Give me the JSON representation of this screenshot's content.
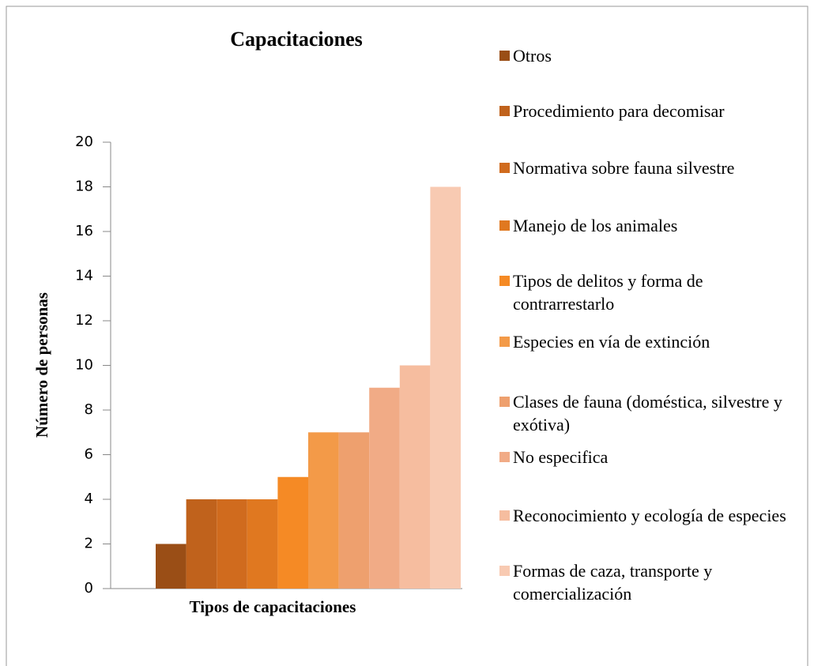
{
  "chart_data": {
    "type": "bar",
    "title": "Capacitaciones",
    "x_label": "Tipos de capacitaciones",
    "y_label": "Número de personas",
    "ylim": [
      0,
      20
    ],
    "yticks": [
      0,
      2,
      4,
      6,
      8,
      10,
      12,
      14,
      16,
      18,
      20
    ],
    "legend": "right",
    "series": [
      {
        "name": "Otros",
        "color": "#9a4e16",
        "values": [
          2
        ]
      },
      {
        "name": "Procedimiento para decomisar",
        "color": "#c0621c",
        "values": [
          4
        ]
      },
      {
        "name": "Normativa sobre fauna silvestre",
        "color": "#d06b1e",
        "values": [
          4
        ]
      },
      {
        "name": "Manejo de los animales",
        "color": "#e07820",
        "values": [
          4
        ]
      },
      {
        "name": "Tipos de delitos y forma de contrarrestarlo",
        "color": "#f58a25",
        "values": [
          5
        ]
      },
      {
        "name": "Especies en vía de extinción",
        "color": "#f39a48",
        "values": [
          7
        ]
      },
      {
        "name": "Clases de fauna (doméstica, silvestre y exótiva)",
        "color": "#eea06e",
        "values": [
          7
        ]
      },
      {
        "name": "No especifica",
        "color": "#f1ab86",
        "values": [
          9
        ]
      },
      {
        "name": "Reconocimiento y ecología de especies",
        "color": "#f6bd9f",
        "values": [
          10
        ]
      },
      {
        "name": "Formas de caza, transporte y comercialización",
        "color": "#f8cab2",
        "values": [
          18
        ]
      }
    ]
  }
}
